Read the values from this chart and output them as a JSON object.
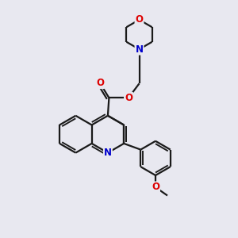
{
  "background_color": "#e8e8f0",
  "bond_color": "#1a1a1a",
  "bond_width": 1.6,
  "atom_colors": {
    "O": "#dd0000",
    "N": "#0000cc",
    "C": "#1a1a1a"
  },
  "figsize": [
    3.0,
    3.0
  ],
  "dpi": 100
}
